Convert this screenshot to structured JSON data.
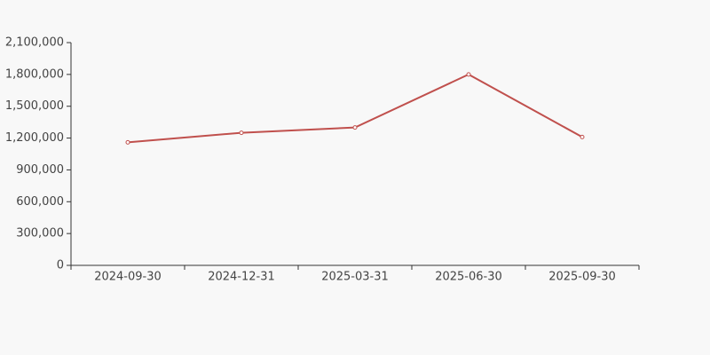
{
  "chart_data": {
    "type": "line",
    "categories": [
      "2024-09-30",
      "2024-12-31",
      "2025-03-31",
      "2025-06-30",
      "2025-09-30"
    ],
    "series": [
      {
        "color": "#c0504d",
        "values": [
          1160000,
          1250000,
          1300000,
          1800000,
          1210000
        ]
      }
    ],
    "ylim": [
      0,
      2100000
    ],
    "yticks": [
      0,
      {
        "value": 300000,
        "label": "300,000"
      },
      {
        "value": 600000,
        "label": "600,000"
      },
      {
        "value": 900000,
        "label": "900,000"
      },
      {
        "value": 1200000,
        "label": "1,200,000"
      },
      {
        "value": 1500000,
        "label": "1,500,000"
      },
      {
        "value": 1800000,
        "label": "1,800,000"
      },
      {
        "value": 2100000,
        "label": "2,100,000"
      }
    ],
    "grid": false
  }
}
